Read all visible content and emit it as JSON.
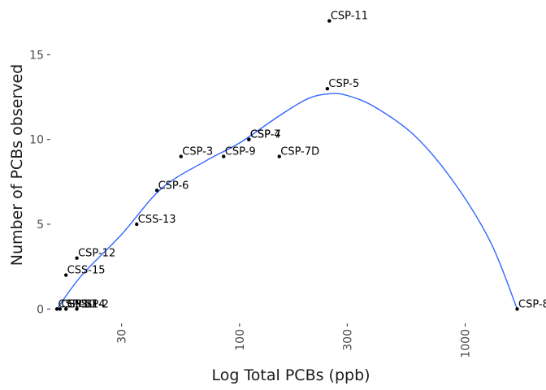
{
  "chart_data": {
    "type": "scatter",
    "title": "",
    "xlabel": "Log Total PCBs (ppb)",
    "ylabel": "Number of PCBs observed",
    "x_scale": "log10",
    "xlim": [
      14.5,
      2100
    ],
    "ylim": [
      -0.85,
      17.85
    ],
    "x_ticks": [
      30,
      100,
      300,
      1000
    ],
    "x_tick_labels": [
      "30",
      "100",
      "300",
      "1000"
    ],
    "y_ticks": [
      0,
      5,
      10,
      15
    ],
    "y_tick_labels": [
      "0",
      "5",
      "10",
      "15"
    ],
    "grid": false,
    "legend": "none",
    "points": [
      {
        "label": "CSP-11",
        "x": 250,
        "y": 17
      },
      {
        "label": "CSP-5",
        "x": 245,
        "y": 13
      },
      {
        "label": "CSP-4",
        "x": 110,
        "y": 10
      },
      {
        "label": "CSP-7",
        "x": 110,
        "y": 10
      },
      {
        "label": "CSP-3",
        "x": 55,
        "y": 9
      },
      {
        "label": "CSP-9",
        "x": 85,
        "y": 9
      },
      {
        "label": "CSP-7D",
        "x": 150,
        "y": 9
      },
      {
        "label": "CSP-6",
        "x": 43,
        "y": 7
      },
      {
        "label": "CSS-13",
        "x": 35,
        "y": 5
      },
      {
        "label": "CSP-12",
        "x": 19,
        "y": 3
      },
      {
        "label": "CSS-15",
        "x": 17,
        "y": 2
      },
      {
        "label": "CSP-10",
        "x": 15.5,
        "y": 0
      },
      {
        "label": "CSP-1",
        "x": 16,
        "y": 0
      },
      {
        "label": "CSS-14",
        "x": 17,
        "y": 0
      },
      {
        "label": "CSP-2",
        "x": 19,
        "y": 0
      },
      {
        "label": "CSP-8",
        "x": 1700,
        "y": 0
      }
    ],
    "smooth_line": {
      "color": "#3366FF",
      "x": [
        15.5,
        20,
        30,
        45,
        70,
        100,
        150,
        200,
        250,
        300,
        400,
        600,
        900,
        1300,
        1700
      ],
      "y": [
        0,
        2.0,
        4.4,
        7.1,
        8.7,
        9.8,
        11.4,
        12.4,
        12.7,
        12.6,
        11.9,
        10.2,
        7.4,
        3.9,
        0
      ]
    }
  }
}
